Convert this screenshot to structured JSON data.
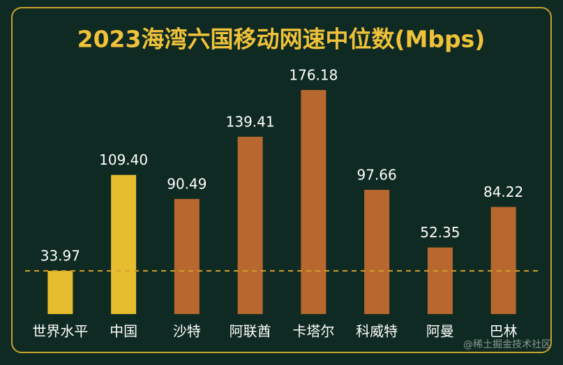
{
  "chart_data": {
    "type": "bar",
    "title": "2023海湾六国移动网速中位数(Mbps)",
    "categories": [
      "世界水平",
      "中国",
      "沙特",
      "阿联酋",
      "卡塔尔",
      "科威特",
      "阿曼",
      "巴林"
    ],
    "values": [
      33.97,
      109.4,
      90.49,
      139.41,
      176.18,
      97.66,
      52.35,
      84.22
    ],
    "value_labels": [
      "33.97",
      "109.40",
      "90.49",
      "139.41",
      "176.18",
      "97.66",
      "52.35",
      "84.22"
    ],
    "colors": [
      "#e6bd2e",
      "#e6bd2e",
      "#b8682f",
      "#b8682f",
      "#b8682f",
      "#b8682f",
      "#b8682f",
      "#b8682f"
    ],
    "ylim": [
      0,
      180
    ],
    "reference_line_color": "#d4a02a",
    "watermark": "@稀土掘金技术社区"
  }
}
